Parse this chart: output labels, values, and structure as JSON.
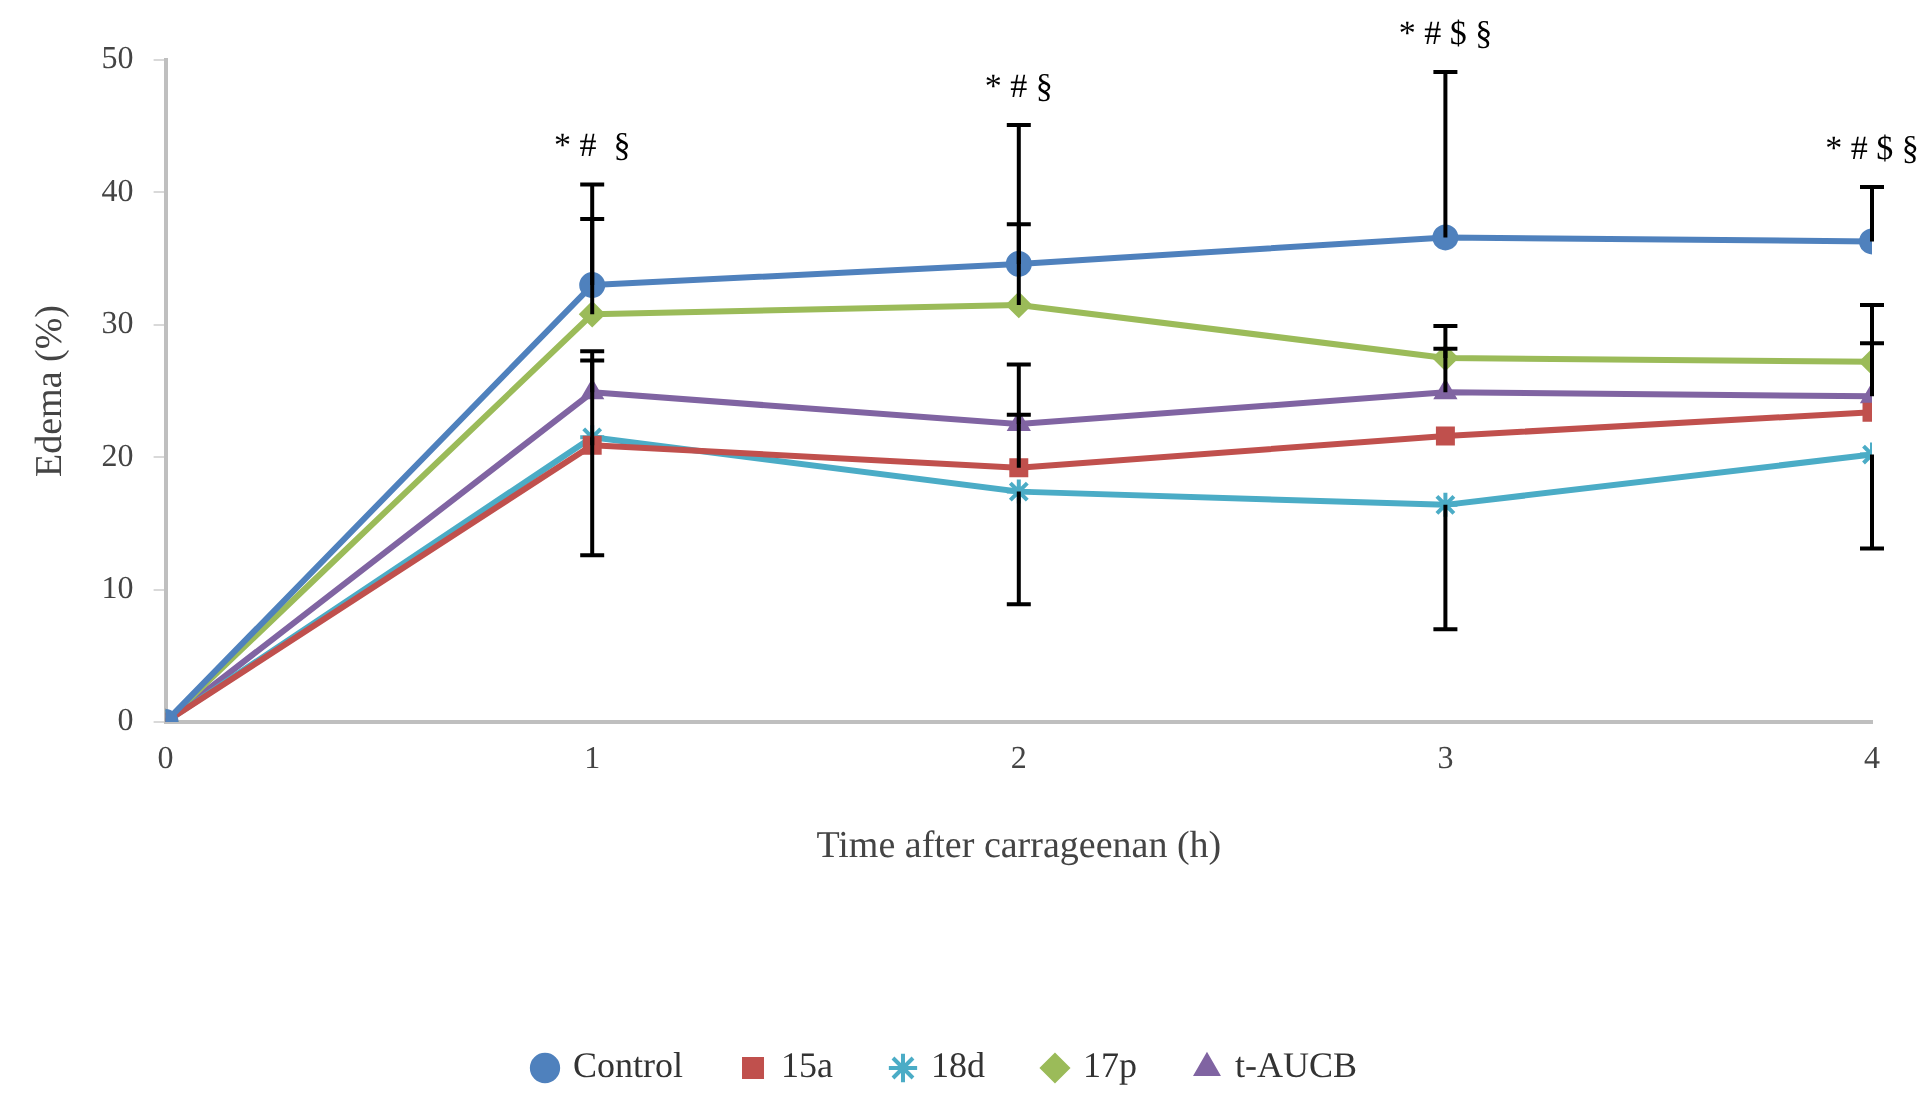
{
  "chart_data": {
    "type": "line",
    "xlabel": "Time after carrageenan (h)",
    "ylabel": "Edema (%)",
    "x": [
      0,
      1,
      2,
      3,
      4
    ],
    "xlim": [
      0,
      4
    ],
    "xticks": [
      0,
      1,
      2,
      3,
      4
    ],
    "ylim": [
      0,
      50
    ],
    "yticks": [
      0,
      10,
      20,
      30,
      40,
      50
    ],
    "grid": false,
    "legend": "bottom",
    "line_style": "solid",
    "series": [
      {
        "name": "Control",
        "color": "#4f81bd",
        "marker": "circle",
        "values": [
          0,
          33.0,
          34.6,
          36.6,
          36.3
        ],
        "errors": [
          null,
          [
            33.0,
            40.6
          ],
          [
            34.6,
            45.1
          ],
          [
            36.6,
            49.1
          ],
          [
            36.3,
            40.4
          ]
        ]
      },
      {
        "name": "15a",
        "color": "#c0504d",
        "marker": "square",
        "values": [
          0,
          20.9,
          19.2,
          21.6,
          23.4
        ],
        "errors": [
          null,
          [
            20.9,
            27.3
          ],
          [
            19.2,
            23.2
          ],
          null,
          null
        ]
      },
      {
        "name": "18d",
        "color": "#4bacc6",
        "marker": "cross",
        "values": [
          0,
          21.5,
          17.4,
          16.4,
          20.2
        ],
        "errors": [
          null,
          [
            12.6,
            21.5
          ],
          [
            8.9,
            17.4
          ],
          [
            7.0,
            16.4
          ],
          [
            13.1,
            20.2
          ]
        ]
      },
      {
        "name": "17p",
        "color": "#9bbb59",
        "marker": "diamond",
        "values": [
          0,
          30.8,
          31.5,
          27.5,
          27.2
        ],
        "errors": [
          null,
          [
            30.8,
            38.0
          ],
          [
            31.5,
            37.6
          ],
          [
            27.5,
            29.9
          ],
          [
            27.2,
            31.5
          ]
        ]
      },
      {
        "name": "t-AUCB",
        "color": "#8064a2",
        "marker": "triangle",
        "values": [
          0,
          24.9,
          22.5,
          24.9,
          24.6
        ],
        "errors": [
          null,
          [
            24.9,
            28.0
          ],
          [
            22.5,
            27.0
          ],
          [
            24.9,
            28.2
          ],
          [
            24.6,
            28.6
          ]
        ]
      }
    ],
    "annotations": [
      {
        "text": "* #  §",
        "x": 1,
        "y": 40.6
      },
      {
        "text": "* # §",
        "x": 2,
        "y": 45.1
      },
      {
        "text": "* # $ §",
        "x": 3,
        "y": 49.1
      },
      {
        "text": "* # $ §",
        "x": 4,
        "y": 40.4
      }
    ]
  }
}
